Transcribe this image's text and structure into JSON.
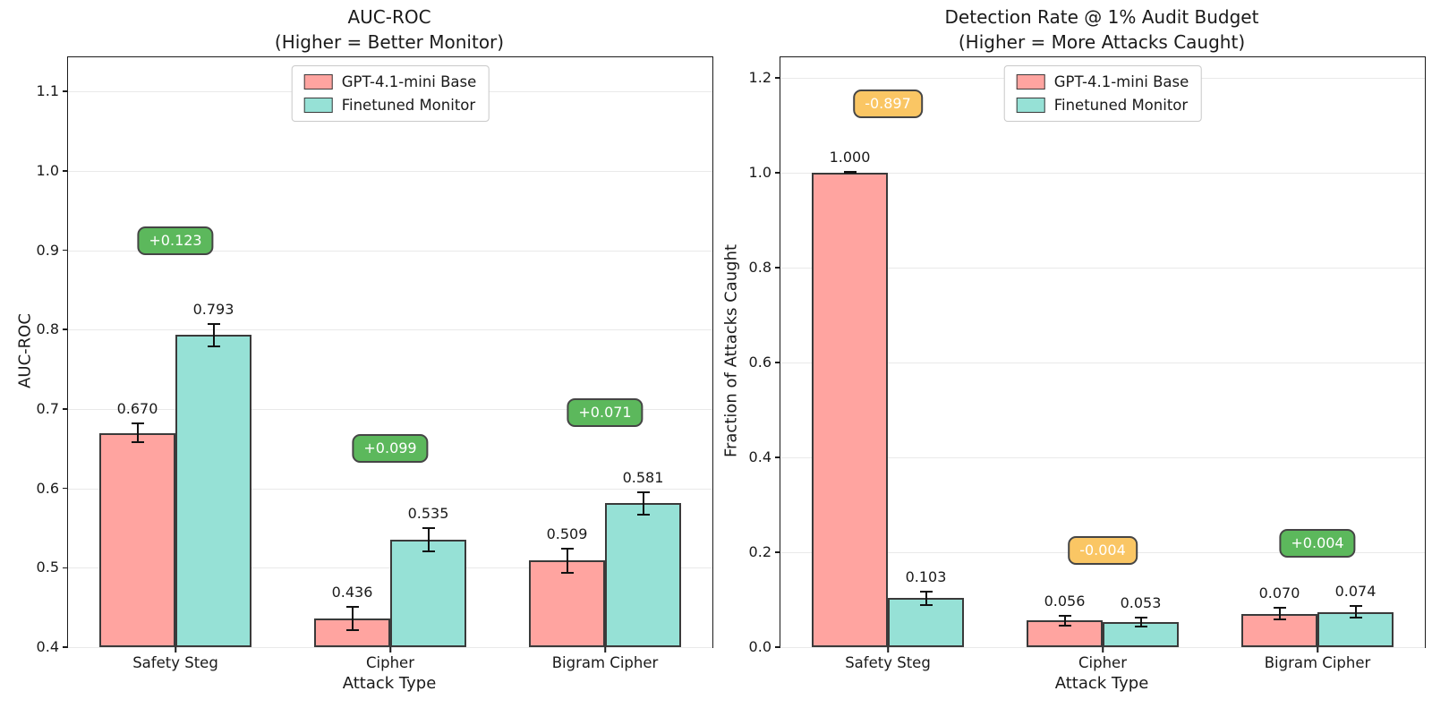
{
  "figure": {
    "background": "#ffffff"
  },
  "colors": {
    "series_fills": [
      "#FFA4A0",
      "#96E1D6"
    ],
    "bar_edge": "#3a3a3a",
    "badge_positive": "#5CB85C",
    "badge_negative": "#FAC664",
    "badge_border": "#454545",
    "badge_text": "#ffffff",
    "grid": "#e9e9e9"
  },
  "chart_data": [
    {
      "type": "bar",
      "title": "AUC-ROC",
      "subtitle": "(Higher = Better Monitor)",
      "xlabel": "Attack Type",
      "ylabel": "AUC-ROC",
      "ylim": [
        0.4,
        1.143
      ],
      "yticks": [
        0.4,
        0.5,
        0.6,
        0.7,
        0.8,
        0.9,
        1.0,
        1.1
      ],
      "grid": "horizontal",
      "legend_position": "upper center",
      "categories": [
        "Safety Steg",
        "Cipher",
        "Bigram Cipher"
      ],
      "series": [
        {
          "name": "GPT-4.1-mini Base",
          "values": [
            0.67,
            0.436,
            0.509
          ],
          "errors": [
            0.013,
            0.016,
            0.016
          ]
        },
        {
          "name": "Finetuned Monitor",
          "values": [
            0.793,
            0.535,
            0.581
          ],
          "errors": [
            0.015,
            0.016,
            0.015
          ]
        }
      ],
      "deltas": [
        {
          "label": "+0.123",
          "positive": true,
          "y": 0.912
        },
        {
          "label": "+0.099",
          "positive": true,
          "y": 0.65
        },
        {
          "label": "+0.071",
          "positive": true,
          "y": 0.695
        }
      ]
    },
    {
      "type": "bar",
      "title": "Detection Rate @ 1% Audit Budget",
      "subtitle": "(Higher = More Attacks Caught)",
      "xlabel": "Attack Type",
      "ylabel": "Fraction of Attacks Caught",
      "ylim": [
        0.0,
        1.243
      ],
      "yticks": [
        0.0,
        0.2,
        0.4,
        0.6,
        0.8,
        1.0,
        1.2
      ],
      "grid": "horizontal",
      "legend_position": "upper center",
      "categories": [
        "Safety Steg",
        "Cipher",
        "Bigram Cipher"
      ],
      "series": [
        {
          "name": "GPT-4.1-mini Base",
          "values": [
            1.0,
            0.056,
            0.07
          ],
          "errors": [
            0.003,
            0.012,
            0.014
          ]
        },
        {
          "name": "Finetuned Monitor",
          "values": [
            0.103,
            0.053,
            0.074
          ],
          "errors": [
            0.016,
            0.012,
            0.014
          ]
        }
      ],
      "deltas": [
        {
          "label": "-0.897",
          "positive": false,
          "y": 1.145
        },
        {
          "label": "-0.004",
          "positive": false,
          "y": 0.204
        },
        {
          "label": "+0.004",
          "positive": true,
          "y": 0.219
        }
      ]
    }
  ]
}
